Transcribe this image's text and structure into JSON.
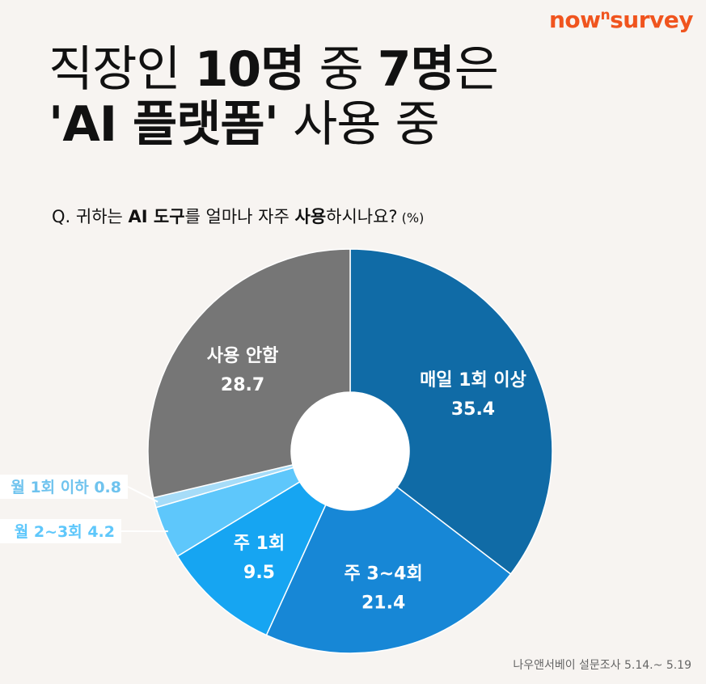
{
  "brand": {
    "logo_left": "now",
    "logo_sup": "n",
    "logo_right": "survey"
  },
  "headline": {
    "line1_a": "직장인 ",
    "line1_b": "10명",
    "line1_c": " 중 ",
    "line1_d": "7명",
    "line1_e": "은",
    "line2_a": "'AI 플랫폼'",
    "line2_b": " 사용 중"
  },
  "question": {
    "prefix": "Q. 귀하는 ",
    "bold1": "AI 도구",
    "mid": "를 얼마나 자주 ",
    "bold2": "사용",
    "suffix": "하시나요?",
    "unit": " (%)"
  },
  "footer": "나우앤서베이 설문조사 5.14.~ 5.19",
  "chart_data": {
    "type": "pie",
    "style": "donut",
    "unit": "%",
    "slices": [
      {
        "label": "매일 1회 이상",
        "value": 35.4,
        "color": "#106ba6",
        "label_inside": true
      },
      {
        "label": "주 3~4회",
        "value": 21.4,
        "color": "#1787d6",
        "label_inside": true
      },
      {
        "label": "주 1회",
        "value": 9.5,
        "color": "#16a5f2",
        "label_inside": true
      },
      {
        "label": "월 2~3회",
        "value": 4.2,
        "color": "#5ec7fb",
        "label_inside": false
      },
      {
        "label": "월 1회 이하",
        "value": 0.8,
        "color": "#a6dcf8",
        "label_inside": false
      },
      {
        "label": "사용 안함",
        "value": 28.7,
        "color": "#767676",
        "label_inside": true
      }
    ]
  }
}
